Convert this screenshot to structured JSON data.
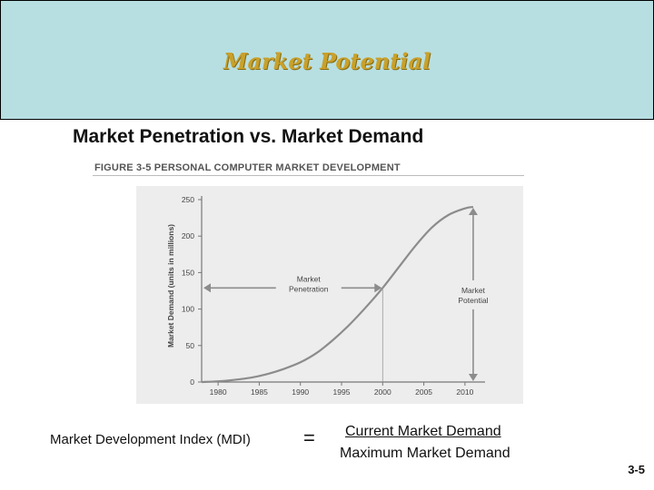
{
  "header": {
    "title": "Market Potential"
  },
  "main_title": "Market Penetration vs. Market Demand",
  "figure_caption": "FIGURE 3-5  PERSONAL COMPUTER MARKET DEVELOPMENT",
  "chart_data": {
    "type": "line",
    "title": "",
    "xlabel": "",
    "ylabel": "Market Demand (units in millions)",
    "xlim": [
      1978,
      2012
    ],
    "ylim": [
      0,
      250
    ],
    "x_ticks": [
      1980,
      1985,
      1990,
      1995,
      2000,
      2005,
      2010
    ],
    "y_ticks": [
      0,
      50,
      100,
      150,
      200,
      250
    ],
    "grid": false,
    "series": [
      {
        "x": [
          1978,
          1980,
          1982,
          1984,
          1986,
          1988,
          1990,
          1992,
          1994,
          1996,
          1998,
          2000,
          2002,
          2004,
          2006,
          2008,
          2010,
          2011
        ],
        "values": [
          0,
          1,
          3,
          6,
          11,
          18,
          27,
          40,
          58,
          79,
          103,
          129,
          158,
          187,
          212,
          229,
          238,
          240
        ]
      }
    ],
    "annotations": [
      {
        "text_lines": [
          "Market",
          "Penetration"
        ],
        "x_from": 1978,
        "x_to": 2000,
        "y": 129
      },
      {
        "text_lines": [
          "Market",
          "Potential"
        ],
        "x": 2011,
        "y_from": 0,
        "y_to": 240
      }
    ],
    "reference_line": {
      "x": 2000,
      "y_top": 129
    },
    "colors": {
      "panel": "#ededed",
      "curve": "#8c8c8c",
      "axis": "#777777",
      "text": "#444444"
    }
  },
  "formula": {
    "label": "Market Development Index (MDI)",
    "equals": "=",
    "numerator": "Current Market Demand",
    "denominator": "Maximum Market Demand"
  },
  "slide_number": "3-5"
}
